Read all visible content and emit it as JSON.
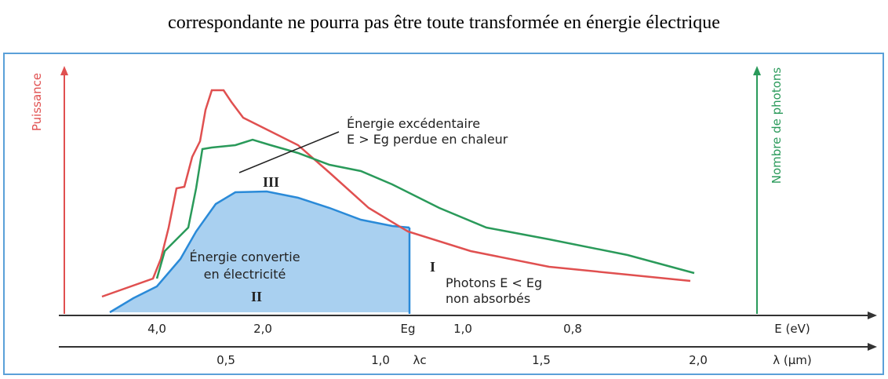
{
  "caption": "correspondante ne pourra pas être toute transformée en énergie électrique",
  "figure": {
    "left_axis_label": "Puissance",
    "right_axis_label": "Nombre de photons",
    "annotations": {
      "excess_line1": "Énergie excédentaire",
      "excess_line2": "E > Eg perdue en chaleur",
      "region3": "III",
      "converted_line1": "Énergie convertie",
      "converted_line2": "en électricité",
      "region2": "II",
      "region1": "I",
      "photons_line1": "Photons E < Eg",
      "photons_line2": "non absorbés"
    },
    "energy_axis": {
      "label": "E (eV)",
      "ticks": [
        "4,0",
        "2,0",
        "Eg",
        "1,0",
        "0,8"
      ]
    },
    "wavelength_axis": {
      "label": "λ (μm)",
      "ticks": [
        "0,5",
        "1,0",
        "λc",
        "1,5",
        "2,0"
      ]
    }
  }
}
